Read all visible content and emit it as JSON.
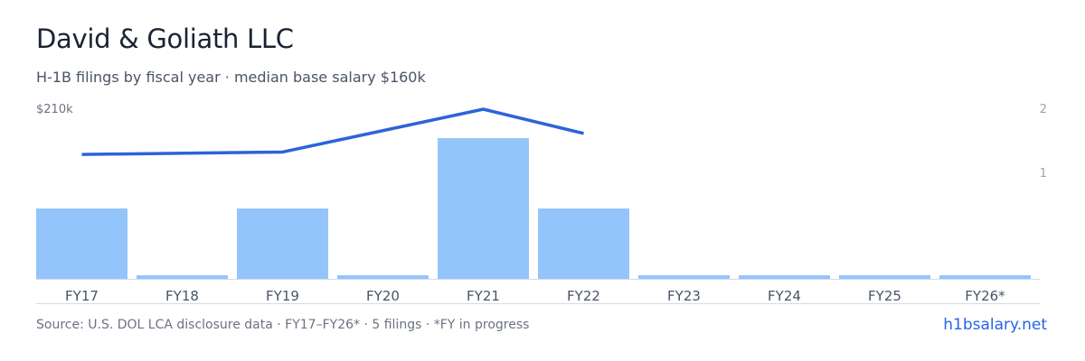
{
  "header": {
    "title": "David & Goliath LLC",
    "subtitle": "H-1B filings by fiscal year · median base salary $160k"
  },
  "footer": {
    "source": "Source: U.S. DOL LCA disclosure data · FY17–FY26* · 5 filings · *FY in progress",
    "brand": "h1bsalary.net"
  },
  "colors": {
    "bar": "#93c5fb",
    "line": "#2b63d9",
    "axis": "#d6dbe3",
    "tick": "#4a5466",
    "axis_label": "#6b7280"
  },
  "chart_data": {
    "type": "bar",
    "categories": [
      "FY17",
      "FY18",
      "FY19",
      "FY20",
      "FY21",
      "FY22",
      "FY23",
      "FY24",
      "FY25",
      "FY26*"
    ],
    "series": [
      {
        "type": "bar",
        "axis": "right",
        "values": [
          1,
          0,
          1,
          0,
          2,
          1,
          0,
          0,
          0,
          0
        ]
      },
      {
        "type": "line",
        "axis": "left",
        "values": [
          154000,
          null,
          157000,
          null,
          210000,
          180000,
          null,
          null,
          null,
          null
        ]
      }
    ],
    "left_axis": {
      "ylim": [
        0,
        210000
      ],
      "tick_label": "$210k"
    },
    "right_axis": {
      "ylim": [
        0,
        2.4
      ],
      "ticks": [
        "1",
        "2"
      ]
    },
    "grid": false,
    "legend": "none"
  }
}
